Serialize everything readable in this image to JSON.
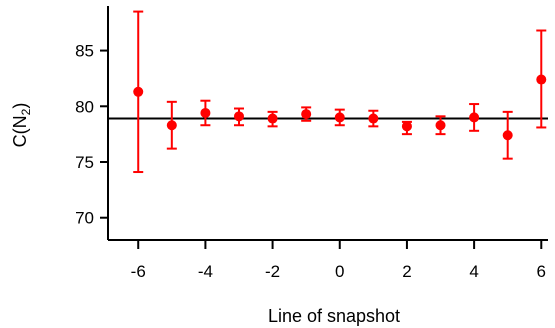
{
  "chart_data": {
    "type": "scatter",
    "title": "",
    "xlabel": "Line of snapshot",
    "ylabel_main": "C(N",
    "ylabel_sub": "2",
    "ylabel_close": ")",
    "xlim": [
      -6.9,
      6.2
    ],
    "ylim": [
      68.0,
      89.0
    ],
    "xticks": [
      -6,
      -4,
      -2,
      0,
      2,
      4,
      6
    ],
    "xtick_labels": [
      "-6",
      "-4",
      "-2",
      "0",
      "2",
      "4",
      "6"
    ],
    "yticks": [
      70,
      75,
      80,
      85
    ],
    "ytick_labels": [
      "70",
      "75",
      "80",
      "85"
    ],
    "grid": false,
    "reference_line_y": 78.9,
    "colors": {
      "points": "#ff0000",
      "reference_line": "#000000",
      "axes": "#000000"
    },
    "series": [
      {
        "x": [
          -6,
          -5,
          -4,
          -3,
          -2,
          -1,
          0,
          1,
          2,
          3,
          4,
          5,
          6
        ],
        "y": [
          81.3,
          78.3,
          79.4,
          79.1,
          78.9,
          79.3,
          79.0,
          78.9,
          78.2,
          78.3,
          79.0,
          77.4,
          82.4
        ],
        "err_low": [
          74.1,
          76.2,
          78.3,
          78.3,
          78.2,
          78.7,
          78.3,
          78.2,
          77.5,
          77.5,
          77.8,
          75.3,
          78.1
        ],
        "err_high": [
          88.5,
          80.4,
          80.5,
          79.8,
          79.5,
          79.9,
          79.7,
          79.6,
          78.6,
          79.1,
          80.2,
          79.5,
          86.8
        ]
      }
    ]
  }
}
